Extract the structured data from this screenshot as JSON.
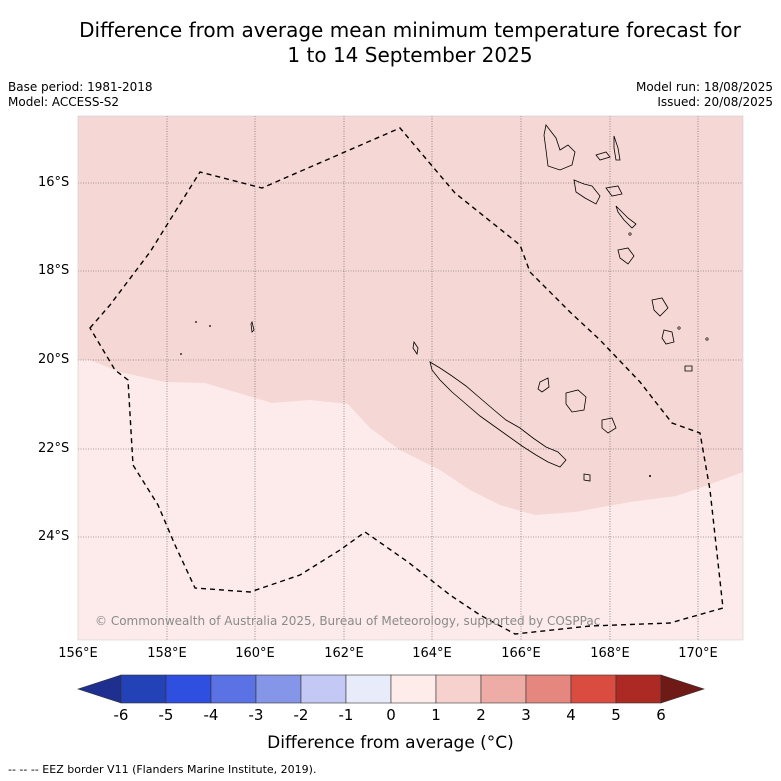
{
  "title_line1": "Difference from average mean minimum temperature forecast for",
  "title_line2": "1 to 14 September 2025",
  "base_period": "Base period: 1981-2018",
  "model": "Model: ACCESS-S2",
  "model_run": "Model run: 18/08/2025",
  "issued": "Issued: 20/08/2025",
  "lat_labels": [
    "16°S",
    "18°S",
    "20°S",
    "22°S",
    "24°S"
  ],
  "lon_labels": [
    "156°E",
    "158°E",
    "160°E",
    "162°E",
    "164°E",
    "166°E",
    "168°E",
    "170°E"
  ],
  "copyright": "© Commonwealth of Australia 2025, Bureau of Meteorology, supported by COSPPac",
  "colorbar": {
    "ticks": [
      "-6",
      "-5",
      "-4",
      "-3",
      "-2",
      "-1",
      "0",
      "1",
      "2",
      "3",
      "4",
      "5",
      "6"
    ],
    "colors": [
      "#1f2f8f",
      "#2442b8",
      "#2f4fe0",
      "#5a72e3",
      "#8596e8",
      "#c3c9f4",
      "#e8ebfa",
      "#fdecea",
      "#f6d1cd",
      "#eeaca6",
      "#e6877f",
      "#da4c3f",
      "#ad2a24",
      "#6f1a16"
    ],
    "title": "Difference from average (°C)"
  },
  "map_colors": {
    "anomaly_0_1": "#fcebea",
    "anomaly_1_2": "#f5d7d5"
  },
  "footer": "--  --  -- EEZ border V11 (Flanders Marine Institute, 2019)."
}
